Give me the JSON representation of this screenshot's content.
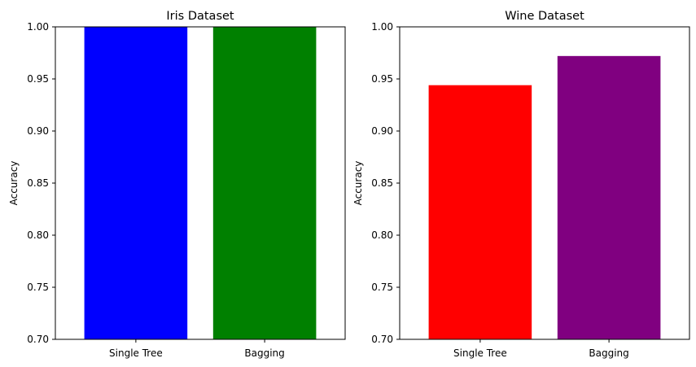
{
  "chart_data": [
    {
      "type": "bar",
      "title": "Iris Dataset",
      "xlabel": "",
      "ylabel": "Accuracy",
      "categories": [
        "Single Tree",
        "Bagging"
      ],
      "values": [
        1.0,
        1.0
      ],
      "colors": [
        "#0000ff",
        "#008000"
      ],
      "ylim": [
        0.7,
        1.0
      ],
      "yticks": [
        "0.70",
        "0.75",
        "0.80",
        "0.85",
        "0.90",
        "0.95",
        "1.00"
      ],
      "grid": false,
      "legend": "none"
    },
    {
      "type": "bar",
      "title": "Wine Dataset",
      "xlabel": "",
      "ylabel": "Accuracy",
      "categories": [
        "Single Tree",
        "Bagging"
      ],
      "values": [
        0.944,
        0.972
      ],
      "colors": [
        "#ff0000",
        "#800080"
      ],
      "ylim": [
        0.7,
        1.0
      ],
      "yticks": [
        "0.70",
        "0.75",
        "0.80",
        "0.85",
        "0.90",
        "0.95",
        "1.00"
      ],
      "grid": false,
      "legend": "none"
    }
  ]
}
